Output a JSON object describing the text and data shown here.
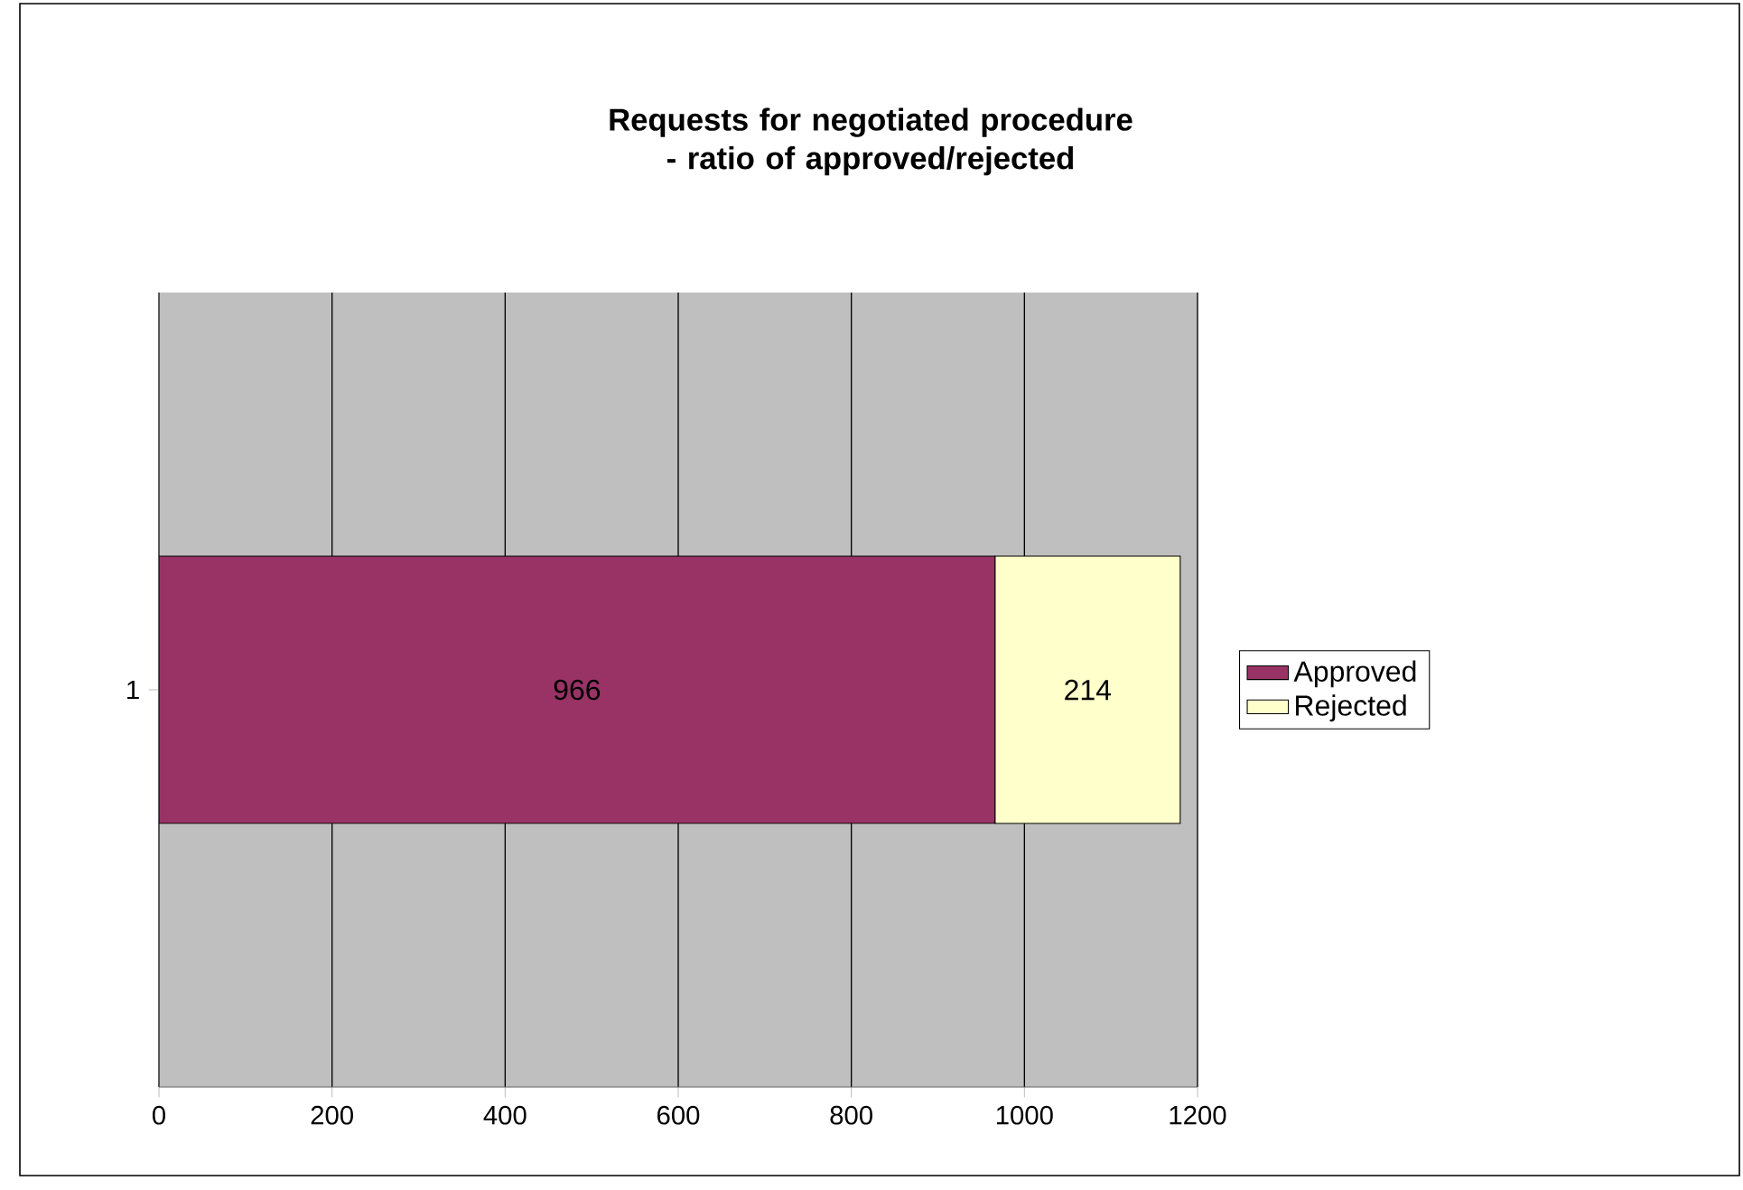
{
  "chart_data": {
    "type": "bar",
    "orientation": "horizontal",
    "stacked": true,
    "title": "Requests for negotiated procedure - ratio of approved/rejected",
    "categories": [
      "1"
    ],
    "series": [
      {
        "name": "Approved",
        "color": "#993366",
        "values": [
          966
        ]
      },
      {
        "name": "Rejected",
        "color": "#ffffcc",
        "values": [
          214
        ]
      }
    ],
    "xlim": [
      0,
      1200
    ],
    "xticks": [
      0,
      200,
      400,
      600,
      800,
      1000,
      1200
    ],
    "grid": "x",
    "legend": "right",
    "data_labels": true
  }
}
